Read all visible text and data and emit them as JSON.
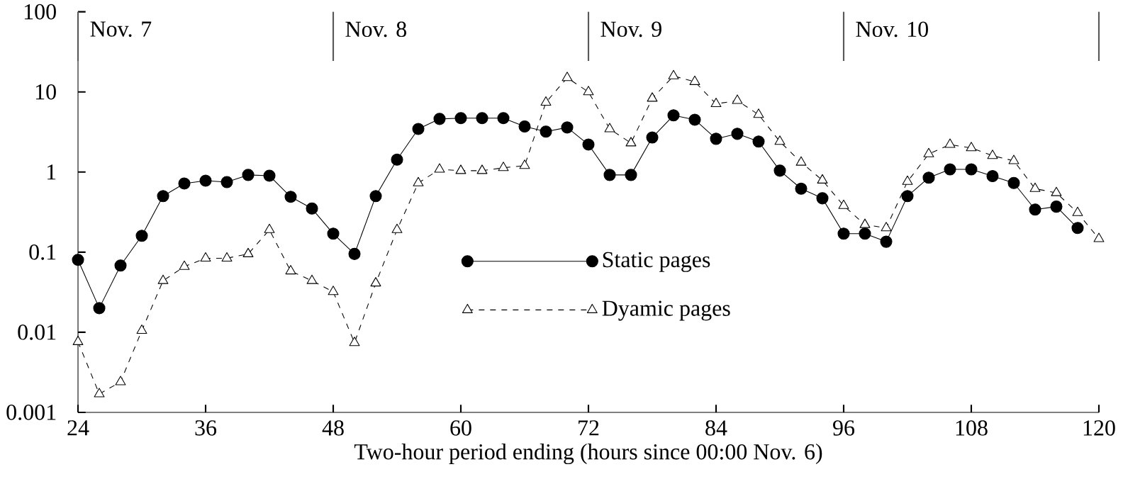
{
  "chart_data": {
    "type": "line",
    "xlabel": "Two-hour period ending (hours since 00:00 Nov. 6)",
    "x": [
      24,
      26,
      28,
      30,
      32,
      34,
      36,
      38,
      40,
      42,
      44,
      46,
      48,
      50,
      52,
      54,
      56,
      58,
      60,
      62,
      64,
      66,
      68,
      70,
      72,
      74,
      76,
      78,
      80,
      82,
      84,
      86,
      88,
      90,
      92,
      94,
      96,
      98,
      100,
      102,
      104,
      106,
      108,
      110,
      112,
      114,
      116,
      118,
      120
    ],
    "series": [
      {
        "name": "Static pages",
        "color": "#000000",
        "marker": "circle",
        "line_style": "solid",
        "values": [
          0.08,
          0.02,
          0.068,
          0.16,
          0.5,
          0.72,
          0.78,
          0.75,
          0.92,
          0.9,
          0.49,
          0.35,
          0.17,
          0.095,
          0.5,
          1.43,
          3.45,
          4.6,
          4.7,
          4.7,
          4.7,
          3.7,
          3.2,
          3.6,
          2.2,
          0.92,
          0.92,
          2.7,
          5.1,
          4.5,
          2.6,
          3.0,
          2.4,
          1.04,
          0.62,
          0.47,
          0.17,
          0.17,
          0.135,
          0.5,
          0.85,
          1.08,
          1.08,
          0.89,
          0.73,
          0.34,
          0.37,
          0.2,
          null
        ]
      },
      {
        "name": "Dyamic pages",
        "color": "#000000",
        "marker": "triangle",
        "line_style": "dashed",
        "values": [
          0.0076,
          0.0017,
          0.0024,
          0.0105,
          0.044,
          0.066,
          0.084,
          0.084,
          0.095,
          0.19,
          0.058,
          0.044,
          0.032,
          0.0074,
          0.041,
          0.19,
          0.73,
          1.08,
          1.04,
          1.04,
          1.13,
          1.2,
          7.4,
          15,
          10,
          3.45,
          2.3,
          8.3,
          15.8,
          13.4,
          7.1,
          7.8,
          5.2,
          2.4,
          1.32,
          0.79,
          0.38,
          0.22,
          0.2,
          0.76,
          1.68,
          2.2,
          2.0,
          1.6,
          1.38,
          0.62,
          0.55,
          0.31,
          0.147
        ]
      }
    ],
    "xlim": [
      24,
      120
    ],
    "xticks": [
      24,
      36,
      48,
      60,
      72,
      84,
      96,
      108,
      120
    ],
    "ylim": [
      0.001,
      100
    ],
    "yticks": [
      0.001,
      0.01,
      0.1,
      1,
      10,
      100
    ],
    "log": "y",
    "grid": false,
    "legend": "center right",
    "ref_lines": [
      {
        "axis": "x",
        "value": 24,
        "label": "Nov. 7"
      },
      {
        "axis": "x",
        "value": 48,
        "label": "Nov. 8"
      },
      {
        "axis": "x",
        "value": 72,
        "label": "Nov. 9"
      },
      {
        "axis": "x",
        "value": 96,
        "label": "Nov. 10"
      },
      {
        "axis": "x",
        "value": 120
      }
    ]
  }
}
